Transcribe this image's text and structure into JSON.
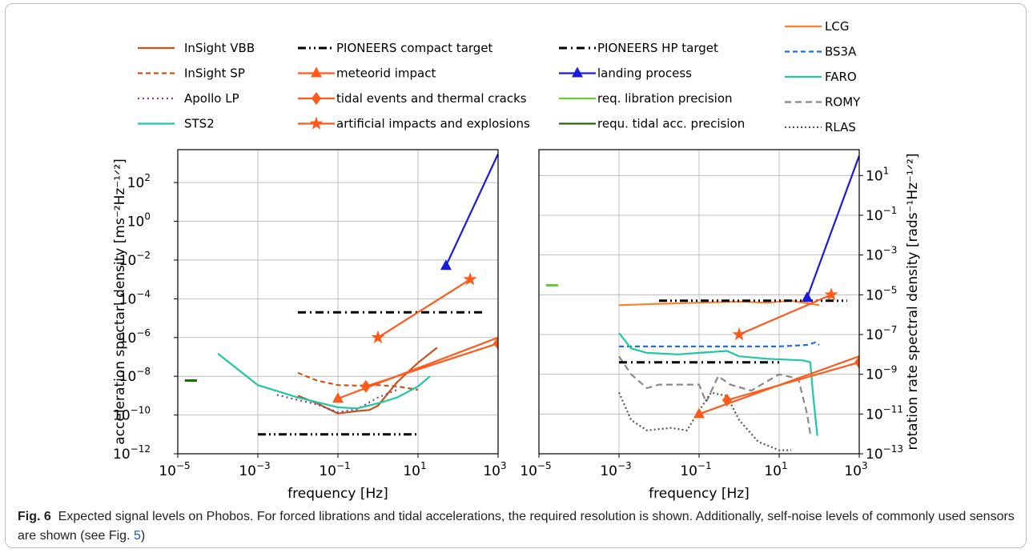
{
  "legend": [
    [
      {
        "label": "InSight VBB",
        "color": "#c8541a",
        "dash": "",
        "marker": ""
      },
      {
        "label": "InSight SP",
        "color": "#c8541a",
        "dash": "6,4",
        "marker": ""
      },
      {
        "label": "Apollo LP",
        "color": "#7a3e9d",
        "dash": "2,4",
        "marker": ""
      },
      {
        "label": "STS2",
        "color": "#1dc9a4",
        "dash": "",
        "marker": ""
      }
    ],
    [
      {
        "label": "PIONEERS compact target",
        "color": "#000000",
        "dash": "10,4,2,4,2,4",
        "marker": ""
      },
      {
        "label": "meteorid impact",
        "color": "#ff5a1c",
        "dash": "",
        "marker": "triangle"
      },
      {
        "label": "tidal events and thermal cracks",
        "color": "#ff5a1c",
        "dash": "",
        "marker": "diamond"
      },
      {
        "label": "artificial impacts and explosions",
        "color": "#ff5a1c",
        "dash": "",
        "marker": "star"
      }
    ],
    [
      {
        "label": "PIONEERS HP target",
        "color": "#000000",
        "dash": "10,5,2,5",
        "marker": ""
      },
      {
        "label": "landing process",
        "color": "#1a1adf",
        "dash": "",
        "marker": "triangle"
      },
      {
        "label": "req. libration precision",
        "color": "#66cc33",
        "dash": "",
        "marker": ""
      },
      {
        "label": "requ. tidal acc. precision",
        "color": "#1f6a0a",
        "dash": "",
        "marker": ""
      }
    ],
    [
      {
        "label": "LCG",
        "color": "#ff7f2a",
        "dash": "",
        "marker": ""
      },
      {
        "label": "BS3A",
        "color": "#1f6fe0",
        "dash": "6,4",
        "marker": ""
      },
      {
        "label": "FARO",
        "color": "#1dc9a4",
        "dash": "",
        "marker": ""
      },
      {
        "label": "ROMY",
        "color": "#888888",
        "dash": "8,5",
        "marker": ""
      },
      {
        "label": "RLAS",
        "color": "#555555",
        "dash": "2,3",
        "marker": ""
      }
    ]
  ],
  "chart_data": [
    {
      "type": "line",
      "xlabel": "frequency [Hz]",
      "ylabel": "acceleration spectarl density [ms⁻²Hz⁻¹ᐟ²]",
      "xscale": "log",
      "yscale": "log",
      "xlim": [
        1e-05,
        1000
      ],
      "ylim": [
        1e-12,
        5000
      ],
      "grid": true,
      "xticks": [
        {
          "v": 1e-05,
          "b": "10",
          "e": "−5"
        },
        {
          "v": 0.001,
          "b": "10",
          "e": "−3"
        },
        {
          "v": 0.1,
          "b": "10",
          "e": "−1"
        },
        {
          "v": 10,
          "b": "10",
          "e": "1"
        },
        {
          "v": 1000,
          "b": "10",
          "e": "3"
        }
      ],
      "yticks": [
        {
          "v": 1e-12,
          "b": "10",
          "e": "−12"
        },
        {
          "v": 1e-10,
          "b": "10",
          "e": "−10"
        },
        {
          "v": 1e-08,
          "b": "10",
          "e": "−8"
        },
        {
          "v": 1e-06,
          "b": "10",
          "e": "−6"
        },
        {
          "v": 0.0001,
          "b": "10",
          "e": "−4"
        },
        {
          "v": 0.01,
          "b": "10",
          "e": "−2"
        },
        {
          "v": 1,
          "b": "10",
          "e": "0"
        },
        {
          "v": 100,
          "b": "10",
          "e": "2"
        }
      ],
      "series": [
        {
          "name": "InSight VBB",
          "color": "#c8541a",
          "dash": "",
          "points": [
            [
              0.01,
              1e-09
            ],
            [
              0.03,
              4e-10
            ],
            [
              0.1,
              1.2e-10
            ],
            [
              0.3,
              1.6e-10
            ],
            [
              0.6,
              1.8e-10
            ],
            [
              1,
              3e-10
            ],
            [
              3,
              5e-09
            ],
            [
              10,
              5e-08
            ],
            [
              30,
              3e-07
            ]
          ]
        },
        {
          "name": "InSight SP",
          "color": "#c8541a",
          "dash": "6,4",
          "points": [
            [
              0.01,
              1.5e-08
            ],
            [
              0.03,
              6e-09
            ],
            [
              0.1,
              3.5e-09
            ],
            [
              0.3,
              3.3e-09
            ],
            [
              1,
              3.5e-09
            ],
            [
              3,
              3e-09
            ],
            [
              10,
              2e-09
            ]
          ]
        },
        {
          "name": "Apollo LP",
          "color": "#7a3e9d",
          "dash": "2,4",
          "points": [
            [
              0.003,
              1.1e-09
            ],
            [
              0.01,
              6e-10
            ],
            [
              0.03,
              3.5e-10
            ],
            [
              0.1,
              1.4e-10
            ],
            [
              0.3,
              2e-10
            ],
            [
              1,
              8e-10
            ],
            [
              3,
              2e-09
            ]
          ]
        },
        {
          "name": "STS2",
          "color": "#1dc9a4",
          "dash": "",
          "points": [
            [
              0.0001,
              1.5e-07
            ],
            [
              0.001,
              3.5e-09
            ],
            [
              0.01,
              8e-10
            ],
            [
              0.1,
              2.5e-10
            ],
            [
              0.3,
              2.2e-10
            ],
            [
              1,
              4e-10
            ],
            [
              3,
              8e-10
            ],
            [
              10,
              3e-09
            ],
            [
              20,
              1e-08
            ]
          ]
        },
        {
          "name": "PIONEERS compact target",
          "color": "#000000",
          "dash": "10,4,2,4,2,4",
          "points": [
            [
              0.001,
              1e-11
            ],
            [
              10,
              1e-11
            ]
          ]
        },
        {
          "name": "PIONEERS HP target",
          "color": "#000000",
          "dash": "10,5,2,5",
          "points": [
            [
              0.01,
              2e-05
            ],
            [
              500,
              2e-05
            ]
          ]
        },
        {
          "name": "meteorid impact",
          "color": "#ff5a1c",
          "dash": "",
          "marker": "triangle",
          "markers": [
            [
              0.1,
              7e-10
            ]
          ],
          "points": [
            [
              0.1,
              7e-10
            ],
            [
              1000,
              1e-06
            ]
          ]
        },
        {
          "name": "tidal events and thermal cracks",
          "color": "#ff5a1c",
          "dash": "",
          "marker": "diamond",
          "markers": [
            [
              0.5,
              3e-09
            ],
            [
              1000,
              5e-07
            ]
          ],
          "points": [
            [
              0.5,
              3e-09
            ],
            [
              1000,
              5e-07
            ]
          ]
        },
        {
          "name": "artificial impacts and explosions",
          "color": "#ff5a1c",
          "dash": "",
          "marker": "star",
          "markers": [
            [
              1,
              1e-06
            ],
            [
              200,
              0.001
            ]
          ],
          "points": [
            [
              1,
              1e-06
            ],
            [
              200,
              0.001
            ]
          ]
        },
        {
          "name": "landing process",
          "color": "#1a1adf",
          "dash": "",
          "marker": "triangle",
          "markers": [
            [
              50,
              0.005
            ]
          ],
          "points": [
            [
              50,
              0.005
            ],
            [
              1000,
              3000
            ]
          ]
        },
        {
          "name": "requ. tidal acc. precision",
          "color": "#1f6a0a",
          "dash": "",
          "thick": true,
          "points": [
            [
              1.5e-05,
              6e-09
            ],
            [
              3e-05,
              6e-09
            ]
          ]
        }
      ]
    },
    {
      "type": "line",
      "xlabel": "frequency [Hz]",
      "ylabel": "rotation rate spectral density [rads⁻¹Hz⁻¹ᐟ²]",
      "xscale": "log",
      "yscale": "log",
      "xlim": [
        1e-05,
        1000
      ],
      "ylim": [
        1e-13,
        200
      ],
      "grid": true,
      "yaxis_side": "right",
      "xticks": [
        {
          "v": 1e-05,
          "b": "10",
          "e": "−5"
        },
        {
          "v": 0.001,
          "b": "10",
          "e": "−3"
        },
        {
          "v": 0.1,
          "b": "10",
          "e": "−1"
        },
        {
          "v": 10,
          "b": "10",
          "e": "1"
        },
        {
          "v": 1000,
          "b": "10",
          "e": "3"
        }
      ],
      "yticks": [
        {
          "v": 1e-13,
          "b": "10",
          "e": "−13"
        },
        {
          "v": 1e-11,
          "b": "10",
          "e": "−11"
        },
        {
          "v": 1e-09,
          "b": "10",
          "e": "−9"
        },
        {
          "v": 1e-07,
          "b": "10",
          "e": "−7"
        },
        {
          "v": 1e-05,
          "b": "10",
          "e": "−5"
        },
        {
          "v": 0.001,
          "b": "10",
          "e": "−3"
        },
        {
          "v": 0.1,
          "b": "10",
          "e": "−1"
        },
        {
          "v": 10,
          "b": "10",
          "e": "1"
        }
      ],
      "series": [
        {
          "name": "LCG",
          "color": "#ff7f2a",
          "dash": "",
          "points": [
            [
              0.001,
              3e-06
            ],
            [
              0.01,
              3.5e-06
            ],
            [
              0.1,
              4e-06
            ],
            [
              1,
              4.5e-06
            ],
            [
              5,
              4e-06
            ],
            [
              20,
              5e-06
            ],
            [
              100,
              3e-06
            ]
          ]
        },
        {
          "name": "BS3A",
          "color": "#1f6fe0",
          "dash": "6,4",
          "points": [
            [
              0.001,
              2.5e-08
            ],
            [
              0.01,
              2.5e-08
            ],
            [
              0.1,
              2.5e-08
            ],
            [
              1,
              2.5e-08
            ],
            [
              10,
              2.5e-08
            ],
            [
              50,
              3e-08
            ],
            [
              80,
              4e-08
            ],
            [
              100,
              3e-08
            ]
          ]
        },
        {
          "name": "FARO",
          "color": "#1dc9a4",
          "dash": "",
          "points": [
            [
              0.001,
              1.2e-07
            ],
            [
              0.002,
              2e-08
            ],
            [
              0.005,
              1.2e-08
            ],
            [
              0.03,
              1e-08
            ],
            [
              0.1,
              1.2e-08
            ],
            [
              0.5,
              1.5e-08
            ],
            [
              1,
              8e-09
            ],
            [
              5,
              6e-09
            ],
            [
              40,
              5e-09
            ],
            [
              60,
              4e-09
            ],
            [
              70,
              1e-10
            ],
            [
              90,
              8e-13
            ]
          ]
        },
        {
          "name": "ROMY",
          "color": "#888888",
          "dash": "8,5",
          "points": [
            [
              0.001,
              8e-09
            ],
            [
              0.002,
              1e-09
            ],
            [
              0.005,
              2e-10
            ],
            [
              0.01,
              3e-10
            ],
            [
              0.1,
              3e-10
            ],
            [
              0.15,
              4e-11
            ],
            [
              0.3,
              8e-10
            ],
            [
              0.6,
              3e-10
            ],
            [
              2,
              1.5e-10
            ],
            [
              10,
              1e-09
            ],
            [
              30,
              6e-10
            ],
            [
              50,
              1e-11
            ],
            [
              60,
              1e-12
            ]
          ]
        },
        {
          "name": "RLAS",
          "color": "#555555",
          "dash": "2,3",
          "points": [
            [
              0.001,
              1.2e-10
            ],
            [
              0.002,
              5e-12
            ],
            [
              0.005,
              1.5e-12
            ],
            [
              0.02,
              2e-12
            ],
            [
              0.05,
              1.5e-12
            ],
            [
              0.1,
              1.5e-11
            ],
            [
              0.2,
              1.2e-10
            ],
            [
              0.5,
              8e-11
            ],
            [
              1,
              5e-12
            ],
            [
              3,
              4e-13
            ],
            [
              10,
              1.5e-13
            ],
            [
              20,
              1.5e-13
            ]
          ]
        },
        {
          "name": "PIONEERS compact target",
          "color": "#000000",
          "dash": "10,4,2,4,2,4",
          "points": [
            [
              0.01,
              5e-06
            ],
            [
              500,
              5e-06
            ]
          ]
        },
        {
          "name": "PIONEERS HP target",
          "color": "#000000",
          "dash": "10,5,2,5",
          "points": [
            [
              0.001,
              4e-09
            ],
            [
              10,
              4e-09
            ]
          ]
        },
        {
          "name": "meteorid impact",
          "color": "#ff5a1c",
          "dash": "",
          "marker": "triangle",
          "markers": [
            [
              0.1,
              1e-11
            ]
          ],
          "points": [
            [
              0.1,
              1e-11
            ],
            [
              1000,
              8e-09
            ]
          ]
        },
        {
          "name": "tidal events and thermal cracks",
          "color": "#ff5a1c",
          "dash": "",
          "marker": "diamond",
          "markers": [
            [
              0.5,
              5e-11
            ],
            [
              1000,
              4e-09
            ]
          ],
          "points": [
            [
              0.5,
              5e-11
            ],
            [
              1000,
              4e-09
            ]
          ]
        },
        {
          "name": "artificial impacts and explosions",
          "color": "#ff5a1c",
          "dash": "",
          "marker": "star",
          "markers": [
            [
              1,
              1e-07
            ],
            [
              200,
              1e-05
            ]
          ],
          "points": [
            [
              1,
              1e-07
            ],
            [
              200,
              1e-05
            ]
          ]
        },
        {
          "name": "landing process",
          "color": "#1a1adf",
          "dash": "",
          "marker": "triangle",
          "markers": [
            [
              50,
              7e-06
            ]
          ],
          "points": [
            [
              50,
              7e-06
            ],
            [
              1000,
              100
            ]
          ]
        },
        {
          "name": "req. libration precision",
          "color": "#66cc33",
          "dash": "",
          "thick": true,
          "points": [
            [
              1.5e-05,
              3e-05
            ],
            [
              3e-05,
              3e-05
            ]
          ]
        }
      ]
    }
  ],
  "caption": {
    "label": "Fig. 6",
    "text": "Expected signal levels on Phobos. For forced librations and tidal accelerations, the required resolution is shown. Additionally, self-noise levels of commonly used sensors are shown (see Fig. ",
    "ref": "5",
    "end": ")"
  }
}
